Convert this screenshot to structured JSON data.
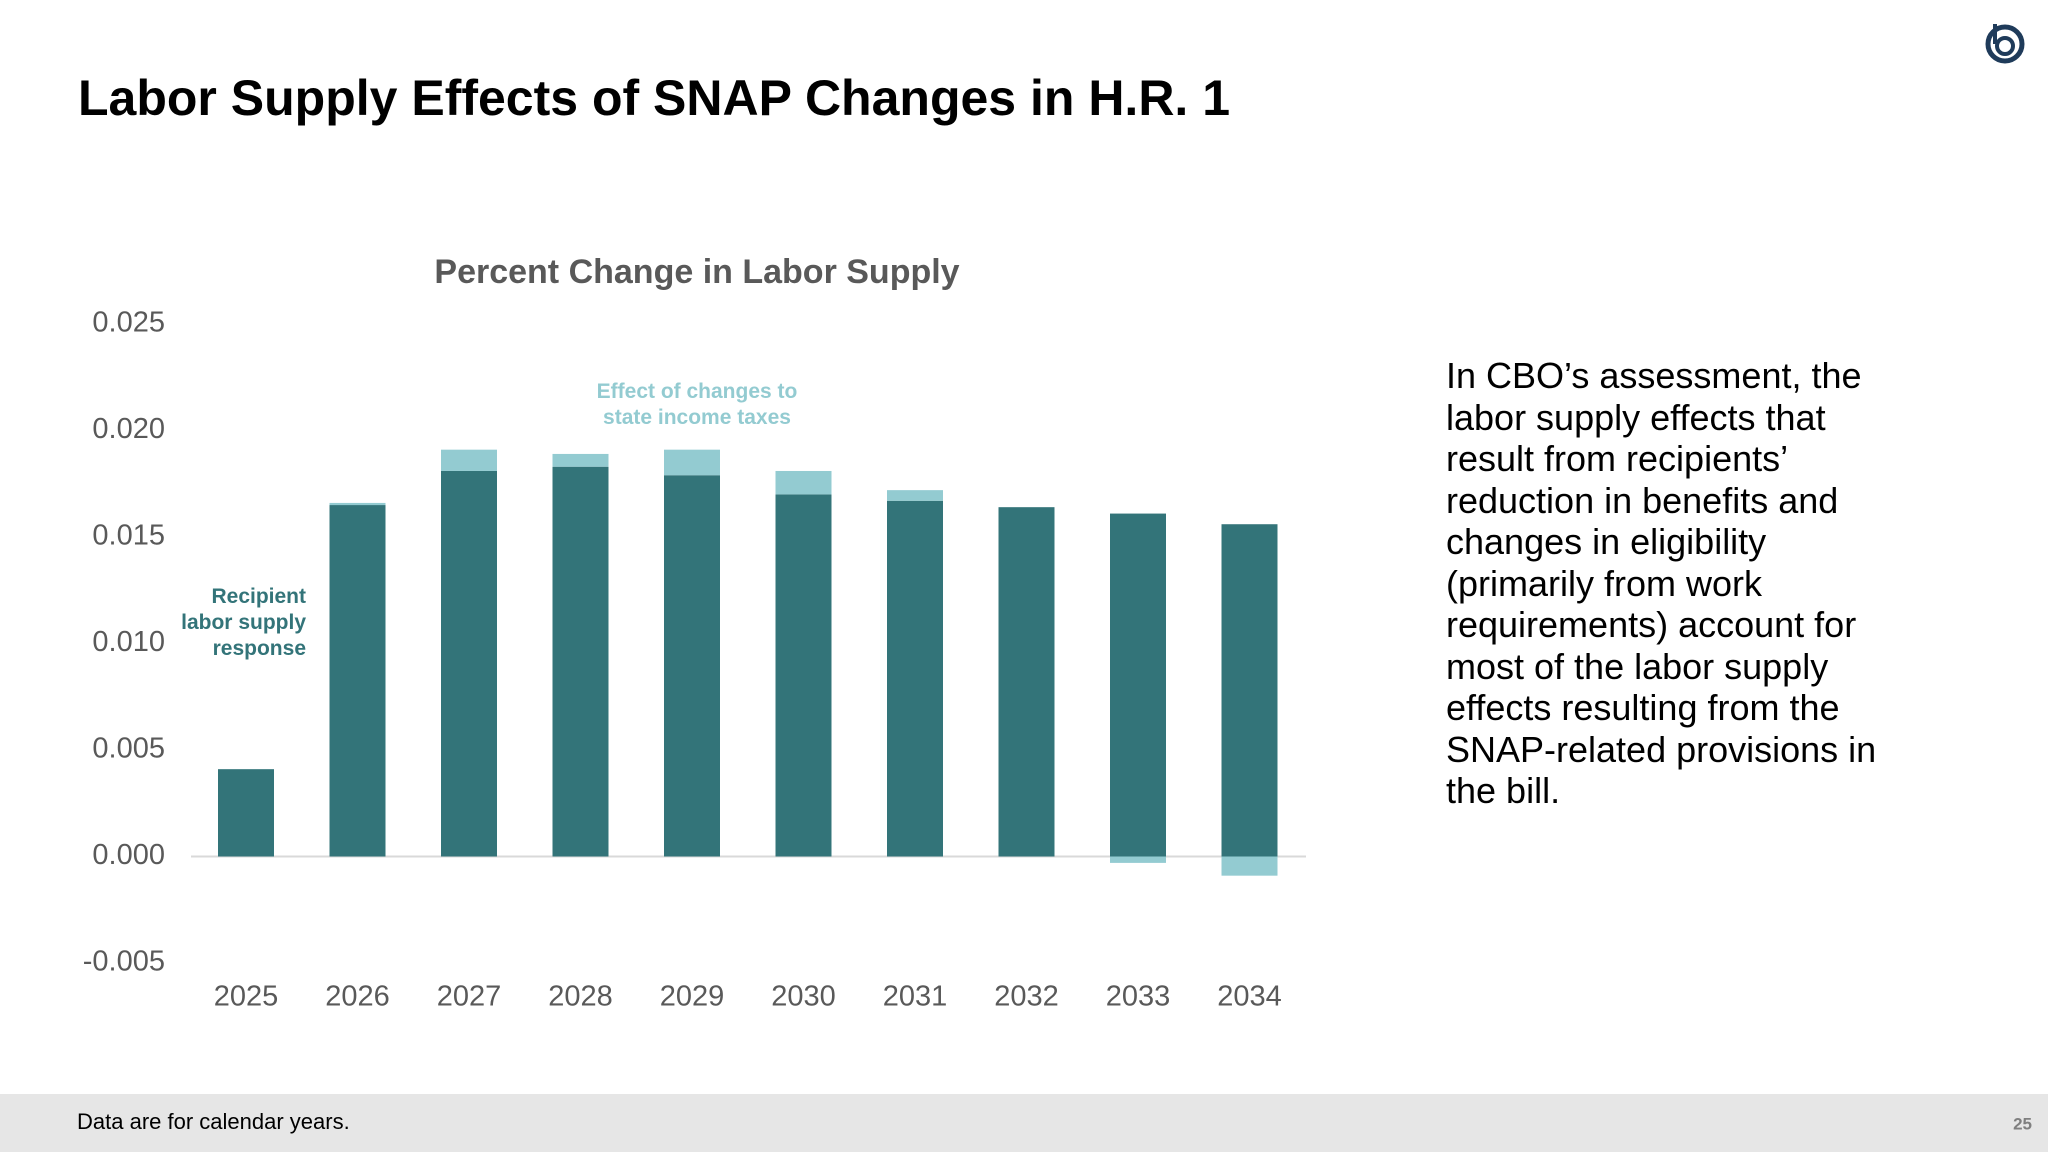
{
  "chart_data": {
    "type": "bar",
    "stacked": true,
    "slide_title": "Labor Supply Effects of SNAP Changes in H.R. 1",
    "title": "Percent Change in Labor Supply",
    "categories": [
      "2025",
      "2026",
      "2027",
      "2028",
      "2029",
      "2030",
      "2031",
      "2032",
      "2033",
      "2034"
    ],
    "series": [
      {
        "name": "Recipient labor supply response",
        "color": "#337479",
        "values": [
          0.0041,
          0.0165,
          0.0181,
          0.0183,
          0.0179,
          0.017,
          0.0167,
          0.0164,
          0.0161,
          0.0156
        ]
      },
      {
        "name": "Effect of changes to state income taxes",
        "color": "#93cbd1",
        "values": [
          0,
          0.0001,
          0.001,
          0.0006,
          0.0012,
          0.0011,
          0.0005,
          0,
          -0.0003,
          -0.0009
        ]
      }
    ],
    "ylim": [
      -0.005,
      0.025
    ],
    "yticks": [
      -0.005,
      {
        "value": 0,
        "label": "0.000"
      },
      0.005,
      {
        "value": 0.01,
        "label": "0.010"
      },
      0.015,
      {
        "value": 0.02,
        "label": "0.020"
      },
      0.025
    ],
    "grid": false,
    "text": "In CBO’s assessment, the labor supply effects that result from recipients’ reduction in benefits and changes in eligibility (primarily from work requirements) account for most of the labor supply effects resulting from the SNAP-related provisions in the bill.",
    "footnote": "Data are for calendar years.",
    "page_number": "25"
  }
}
